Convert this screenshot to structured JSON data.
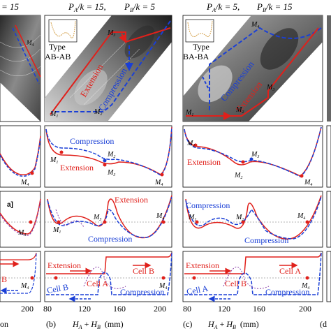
{
  "header": {
    "col_a_suffix": "= 15",
    "col_b": {
      "pa": "P",
      "pa_sub": "A",
      "pa_rest": "/k = 15,",
      "pb": "P",
      "pb_sub": "B",
      "pb_rest": "/k = 5"
    },
    "col_c": {
      "pa": "P",
      "pa_sub": "A",
      "pa_rest": "/k = 5,",
      "pb": "P",
      "pb_sub": "B",
      "pb_rest": "/k = 15"
    }
  },
  "panel_b": {
    "type_label": "Type",
    "type_value": "AB-AB",
    "extension": "Extension",
    "compression": "Compression",
    "row2_compression": "Compression",
    "row2_extension": "Extension",
    "row3_extension": "Extension",
    "row3_compression": "Compression",
    "row4_extension": "Extension",
    "row4_cell_b": "Cell B",
    "row4_cell_a": "Cell A",
    "row4_cell_b2": "Cell B",
    "row4_compression": "Compression",
    "letter": "(b)"
  },
  "panel_c": {
    "type_label": "Type",
    "type_value": "BA-BA",
    "extension": "Extension",
    "compression": "Compression",
    "row2_extension": "Extension",
    "row3_compression": "Compression",
    "row3_compression2": "Compression",
    "row4_extension": "Extension",
    "row4_cell_a": "Cell A",
    "row4_cell_a2": "Cell A",
    "row4_cell_b": "Cell B",
    "row4_compression": "Compression",
    "letter": "(c)"
  },
  "panel_a": {
    "row4_text": "on",
    "tick_200": "200",
    "row4_b": "B",
    "row4_arrow_text": "n"
  },
  "panel_d": {
    "letter": "(d"
  },
  "points": {
    "m1": "M",
    "m2": "M",
    "m3": "M",
    "m4": "M",
    "s1": "1",
    "s2": "2",
    "s3": "3",
    "s4": "4"
  },
  "xaxis": {
    "ticks": [
      "80",
      "120",
      "160",
      "200"
    ],
    "label_h": "H",
    "label_a": "A",
    "label_plus": " + ",
    "label_hb": "H",
    "label_b": "B",
    "units": "(mm)"
  },
  "colors": {
    "extension": "#e0201b",
    "compression": "#1a3fd6",
    "purple": "#8b3fa8"
  }
}
